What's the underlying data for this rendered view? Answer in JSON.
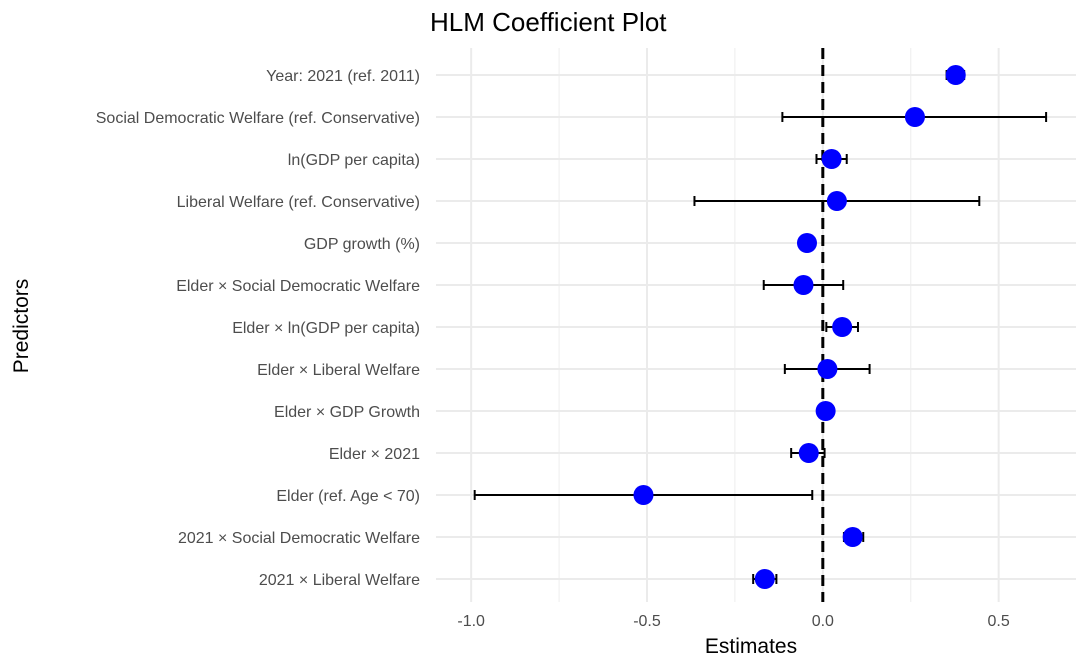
{
  "chart_data": {
    "type": "scatter",
    "title": "HLM Coefficient Plot",
    "xlabel": "Estimates",
    "ylabel": "Predictors",
    "xlim": [
      -1.1,
      0.72
    ],
    "x_ticks": [
      -1.0,
      -0.5,
      0.0,
      0.5
    ],
    "x_tick_labels": [
      "-1.0",
      "-0.5",
      "0.0",
      "0.5"
    ],
    "reference_line": 0,
    "grid": true,
    "point_color": "#0000ff",
    "errorbar_color": "#000000",
    "reference_line_color": "#000000",
    "predictors": [
      {
        "label": "Year: 2021 (ref. 2011)",
        "estimate": 0.378,
        "lower": 0.352,
        "upper": 0.402
      },
      {
        "label": "Social Democratic Welfare (ref. Conservative)",
        "estimate": 0.262,
        "lower": -0.115,
        "upper": 0.635
      },
      {
        "label": "ln(GDP per capita)",
        "estimate": 0.025,
        "lower": -0.018,
        "upper": 0.068
      },
      {
        "label": "Liberal Welfare (ref. Conservative)",
        "estimate": 0.04,
        "lower": -0.365,
        "upper": 0.445
      },
      {
        "label": "GDP growth (%)",
        "estimate": -0.045,
        "lower": -0.058,
        "upper": -0.032
      },
      {
        "label": "Elder × Social Democratic Welfare",
        "estimate": -0.055,
        "lower": -0.168,
        "upper": 0.058
      },
      {
        "label": "Elder × ln(GDP per capita)",
        "estimate": 0.055,
        "lower": 0.01,
        "upper": 0.1
      },
      {
        "label": "Elder × Liberal Welfare",
        "estimate": 0.013,
        "lower": -0.108,
        "upper": 0.133
      },
      {
        "label": "Elder × GDP Growth",
        "estimate": 0.008,
        "lower": -0.005,
        "upper": 0.022
      },
      {
        "label": "Elder × 2021",
        "estimate": -0.04,
        "lower": -0.09,
        "upper": 0.005
      },
      {
        "label": "Elder (ref. Age < 70)",
        "estimate": -0.51,
        "lower": -0.99,
        "upper": -0.03
      },
      {
        "label": "2021 × Social Democratic Welfare",
        "estimate": 0.085,
        "lower": 0.06,
        "upper": 0.115
      },
      {
        "label": "2021 × Liberal Welfare",
        "estimate": -0.165,
        "lower": -0.198,
        "upper": -0.132
      }
    ]
  }
}
